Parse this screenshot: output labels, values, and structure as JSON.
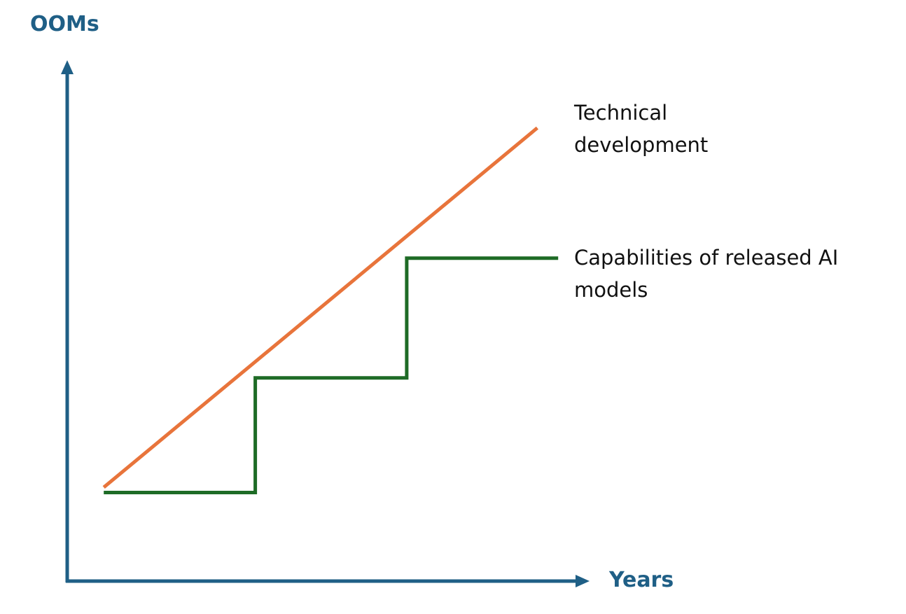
{
  "chart_data": {
    "type": "line",
    "xlabel": "Years",
    "ylabel": "OOMs",
    "xlim": [
      0,
      10
    ],
    "ylim": [
      0,
      10
    ],
    "grid": false,
    "axis_color": "#1f5f86",
    "series": [
      {
        "name_lines": [
          "Technical",
          "development"
        ],
        "color": "#e8743b",
        "style": "linear",
        "points": [
          [
            0.7,
            1.8
          ],
          [
            9.0,
            8.7
          ]
        ]
      },
      {
        "name_lines": [
          "Capabilities of released AI",
          "models"
        ],
        "color": "#1e6b26",
        "style": "step",
        "points": [
          [
            0.7,
            1.7
          ],
          [
            3.6,
            1.7
          ],
          [
            3.6,
            3.9
          ],
          [
            6.5,
            3.9
          ],
          [
            6.5,
            6.2
          ],
          [
            9.4,
            6.2
          ]
        ]
      }
    ]
  }
}
